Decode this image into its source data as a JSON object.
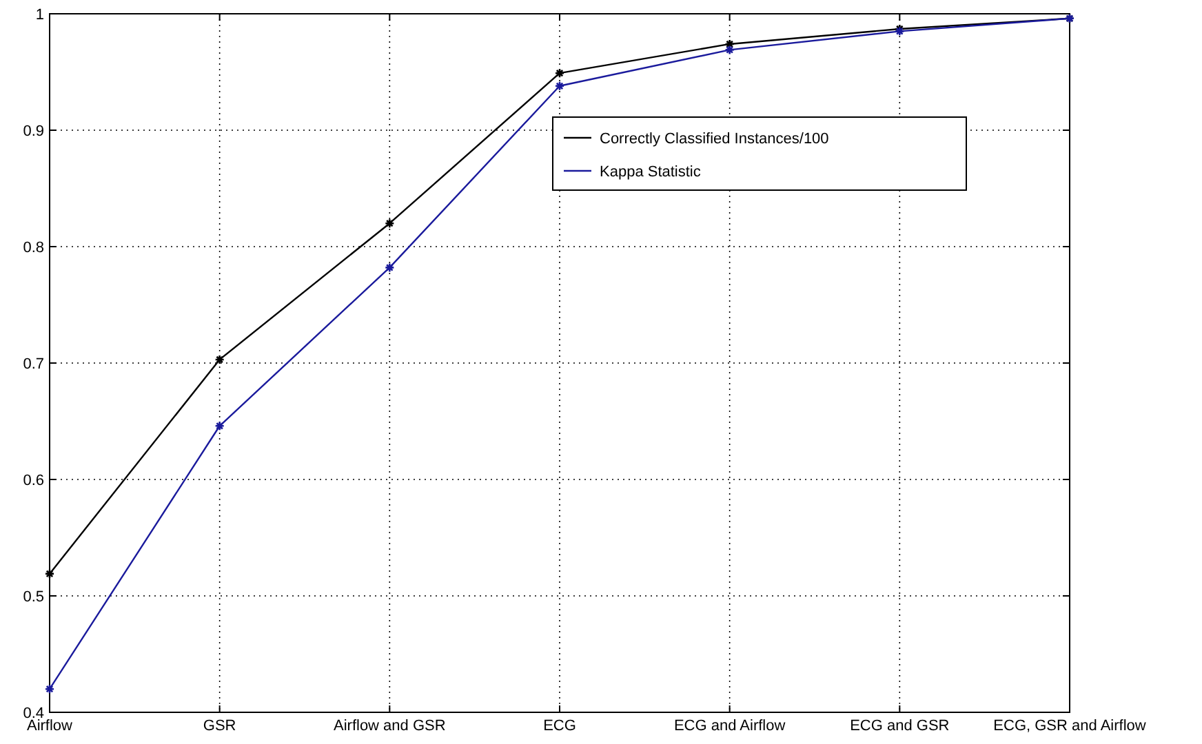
{
  "chart_data": {
    "type": "line",
    "categories": [
      "Airflow",
      "GSR",
      "Airflow and GSR",
      "ECG",
      "ECG and Airflow",
      "ECG and GSR",
      "ECG, GSR and Airflow"
    ],
    "series": [
      {
        "name": "Correctly Classified Instances/100",
        "color": "#000000",
        "values": [
          0.519,
          0.703,
          0.82,
          0.949,
          0.974,
          0.987,
          0.996
        ]
      },
      {
        "name": "Kappa Statistic",
        "color": "#1a1a9c",
        "values": [
          0.42,
          0.646,
          0.782,
          0.938,
          0.969,
          0.985,
          0.996
        ]
      }
    ],
    "ylim": [
      0.4,
      1
    ],
    "yticks": [
      0.4,
      0.5,
      0.6,
      0.7,
      0.8,
      0.9,
      1
    ],
    "grid": true,
    "legend": "top right",
    "marker": "cross",
    "line_style": "solid"
  }
}
